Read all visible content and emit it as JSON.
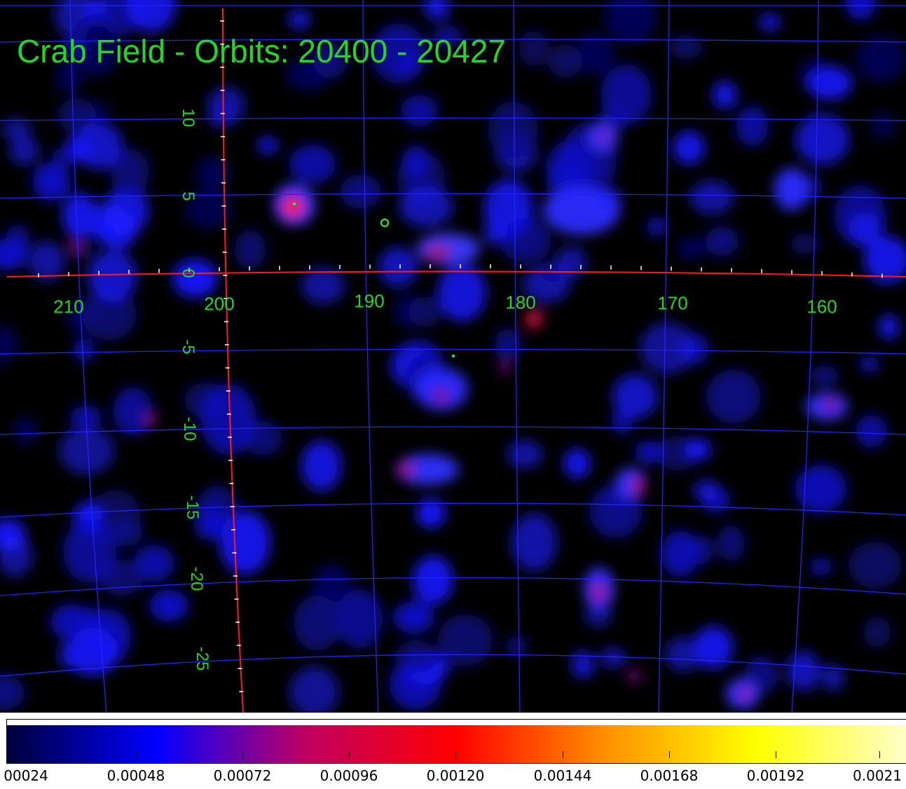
{
  "title": "Crab Field - Orbits: 20400 - 20427",
  "colors": {
    "background": "#000000",
    "grid": "#2222ff",
    "axis": "#ff1a1a",
    "labels": "#22d822"
  },
  "grid_labels": {
    "longitude": [
      "210",
      "200",
      "190",
      "180",
      "170",
      "160"
    ],
    "latitude": [
      "10",
      "5",
      "0",
      "-5",
      "-10",
      "-15",
      "-20",
      "-25"
    ]
  },
  "colorbar": {
    "tick_labels": [
      "00024",
      "0.00048",
      "0.00072",
      "0.00096",
      "0.00120",
      "0.00144",
      "0.00168",
      "0.00192",
      "0.0021"
    ],
    "gradient_stops": [
      "#00003a",
      "#0000ff",
      "#c00060",
      "#ff0000",
      "#ff9000",
      "#ffff00",
      "#ffffc8"
    ]
  }
}
